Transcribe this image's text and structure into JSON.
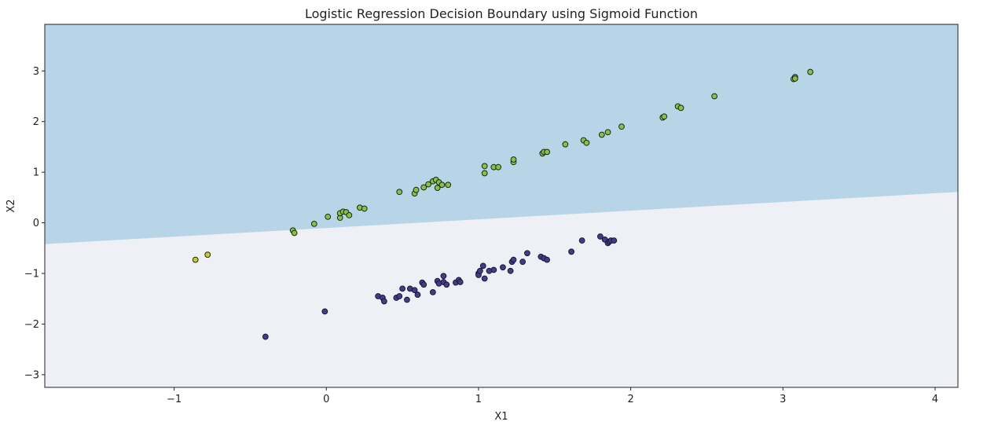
{
  "chart_data": {
    "type": "scatter",
    "title": "Logistic Regression Decision Boundary using Sigmoid Function",
    "xlabel": "X1",
    "ylabel": "X2",
    "xlim": [
      -1.85,
      4.15
    ],
    "ylim": [
      -3.25,
      3.92
    ],
    "xticks": [
      -1,
      0,
      1,
      2,
      3,
      4
    ],
    "yticks": [
      -3,
      -2,
      -1,
      0,
      1,
      2,
      3
    ],
    "grid": false,
    "decision_boundary": {
      "line": [
        [
          -1.85,
          -0.42
        ],
        [
          4.15,
          0.61
        ]
      ],
      "upper_region_color": "#b8d5e8",
      "lower_region_color": "#eff0f5"
    },
    "series": [
      {
        "marker_color": "#86c04d",
        "edge_color": "#1e2a10",
        "points": [
          [
            -0.22,
            -0.15
          ],
          [
            -0.21,
            -0.2
          ],
          [
            -0.08,
            -0.02
          ],
          [
            0.01,
            0.12
          ],
          [
            0.09,
            0.1
          ],
          [
            0.09,
            0.19
          ],
          [
            0.11,
            0.22
          ],
          [
            0.13,
            0.21
          ],
          [
            0.15,
            0.15
          ],
          [
            0.22,
            0.3
          ],
          [
            0.25,
            0.28
          ],
          [
            0.48,
            0.61
          ],
          [
            0.58,
            0.58
          ],
          [
            0.59,
            0.65
          ],
          [
            0.64,
            0.7
          ],
          [
            0.67,
            0.76
          ],
          [
            0.7,
            0.82
          ],
          [
            0.72,
            0.85
          ],
          [
            0.73,
            0.69
          ],
          [
            0.74,
            0.8
          ],
          [
            0.76,
            0.75
          ],
          [
            0.8,
            0.75
          ],
          [
            1.04,
            1.12
          ],
          [
            1.04,
            0.98
          ],
          [
            1.1,
            1.1
          ],
          [
            1.13,
            1.1
          ],
          [
            1.23,
            1.2
          ],
          [
            1.23,
            1.25
          ],
          [
            1.42,
            1.37
          ],
          [
            1.43,
            1.4
          ],
          [
            1.45,
            1.4
          ],
          [
            1.57,
            1.55
          ],
          [
            1.69,
            1.63
          ],
          [
            1.71,
            1.58
          ],
          [
            1.81,
            1.74
          ],
          [
            1.85,
            1.79
          ],
          [
            1.94,
            1.9
          ],
          [
            2.21,
            2.08
          ],
          [
            2.22,
            2.1
          ],
          [
            2.31,
            2.3
          ],
          [
            2.33,
            2.27
          ],
          [
            2.55,
            2.5
          ],
          [
            3.07,
            2.84
          ],
          [
            3.08,
            2.88
          ],
          [
            3.08,
            2.85
          ],
          [
            3.18,
            2.98
          ]
        ]
      },
      {
        "marker_color": "#c3cc3c",
        "edge_color": "#2a2a10",
        "points": [
          [
            -0.86,
            -0.73
          ],
          [
            -0.78,
            -0.63
          ]
        ]
      },
      {
        "marker_color": "#463c85",
        "edge_color": "#1a163a",
        "points": [
          [
            -0.4,
            -2.25
          ],
          [
            -0.01,
            -1.75
          ],
          [
            0.34,
            -1.45
          ],
          [
            0.37,
            -1.48
          ],
          [
            0.38,
            -1.55
          ],
          [
            0.46,
            -1.48
          ],
          [
            0.48,
            -1.45
          ],
          [
            0.5,
            -1.3
          ],
          [
            0.53,
            -1.52
          ],
          [
            0.55,
            -1.3
          ],
          [
            0.58,
            -1.33
          ],
          [
            0.6,
            -1.42
          ],
          [
            0.63,
            -1.18
          ],
          [
            0.64,
            -1.22
          ],
          [
            0.7,
            -1.37
          ],
          [
            0.73,
            -1.15
          ],
          [
            0.74,
            -1.2
          ],
          [
            0.77,
            -1.05
          ],
          [
            0.77,
            -1.17
          ],
          [
            0.79,
            -1.22
          ],
          [
            0.85,
            -1.18
          ],
          [
            0.87,
            -1.13
          ],
          [
            0.88,
            -1.17
          ],
          [
            1.0,
            -1.0
          ],
          [
            1.0,
            -1.03
          ],
          [
            1.01,
            -0.95
          ],
          [
            1.03,
            -0.85
          ],
          [
            1.04,
            -1.1
          ],
          [
            1.07,
            -0.95
          ],
          [
            1.1,
            -0.93
          ],
          [
            1.16,
            -0.88
          ],
          [
            1.21,
            -0.95
          ],
          [
            1.22,
            -0.77
          ],
          [
            1.23,
            -0.73
          ],
          [
            1.29,
            -0.77
          ],
          [
            1.32,
            -0.6
          ],
          [
            1.41,
            -0.67
          ],
          [
            1.43,
            -0.7
          ],
          [
            1.45,
            -0.73
          ],
          [
            1.61,
            -0.57
          ],
          [
            1.68,
            -0.35
          ],
          [
            1.8,
            -0.27
          ],
          [
            1.83,
            -0.33
          ],
          [
            1.85,
            -0.4
          ],
          [
            1.86,
            -0.37
          ],
          [
            1.87,
            -0.35
          ],
          [
            1.89,
            -0.35
          ]
        ]
      }
    ]
  }
}
